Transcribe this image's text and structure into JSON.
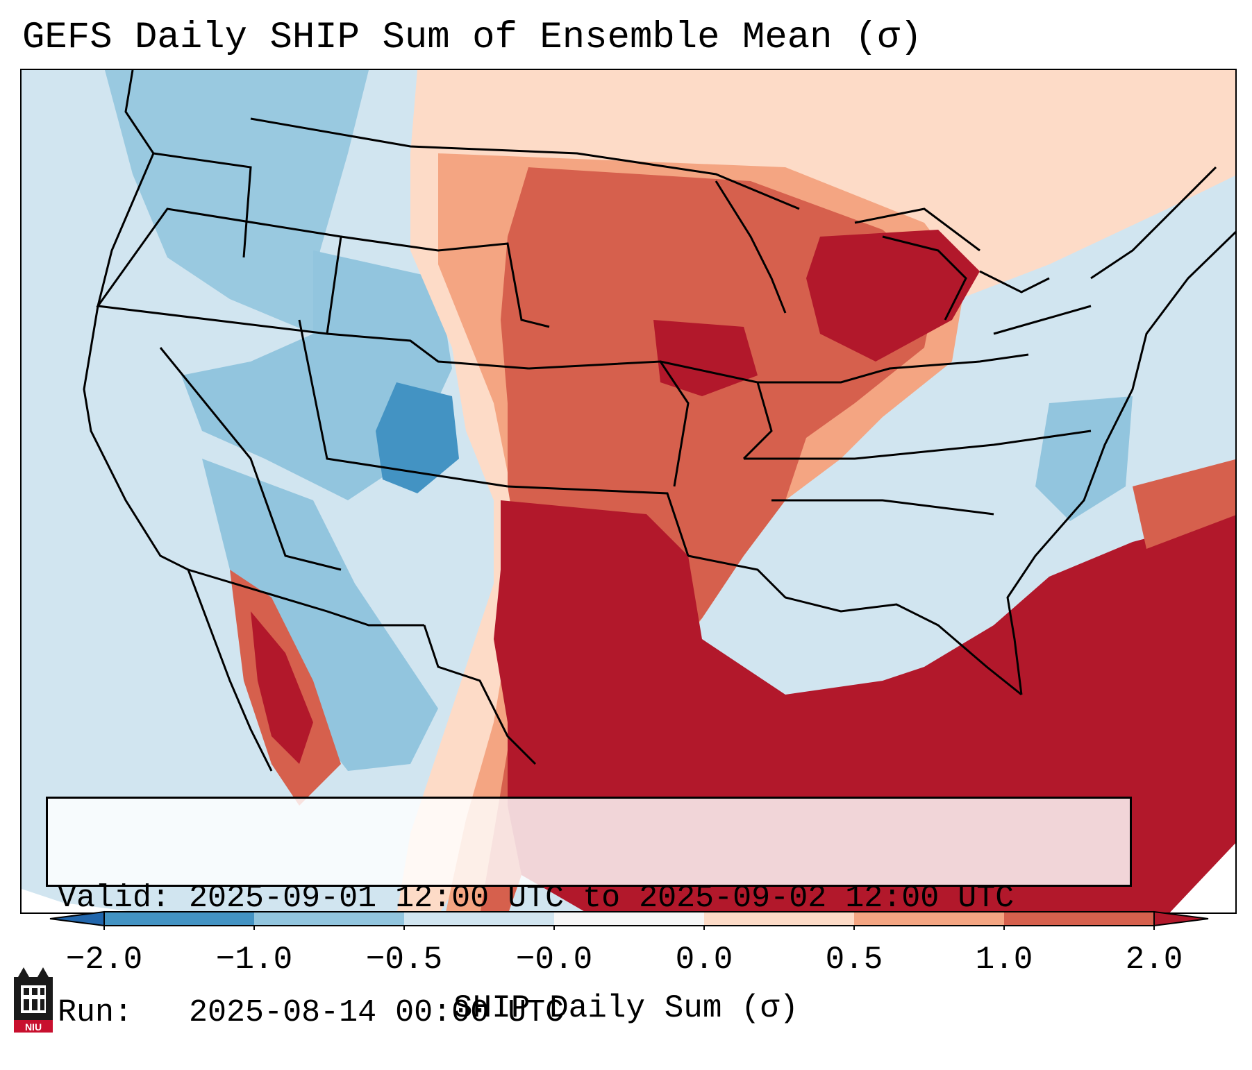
{
  "title": "GEFS Daily SHIP Sum of Ensemble Mean (σ)",
  "info": {
    "valid_label": "Valid:",
    "valid_value": "2025-09-01 12:00 UTC to 2025-09-02 12:00 UTC",
    "run_label": "Run:",
    "run_value": "2025-08-14 00:00 UTC"
  },
  "colorbar": {
    "label": "SHIP Daily Sum (σ)",
    "ticks": [
      "−2.0",
      "−1.0",
      "−0.5",
      "−0.0",
      "0.0",
      "0.5",
      "1.0",
      "2.0"
    ],
    "colors": [
      "#4393c3",
      "#92c5de",
      "#d1e5f0",
      "#f7f7f7",
      "#fddbc7",
      "#f4a582",
      "#d6604d",
      "#b2182b"
    ],
    "extend_low_color": "#2166ac",
    "extend_high_color": "#b2182b"
  },
  "logo": {
    "text": "NIU"
  }
}
